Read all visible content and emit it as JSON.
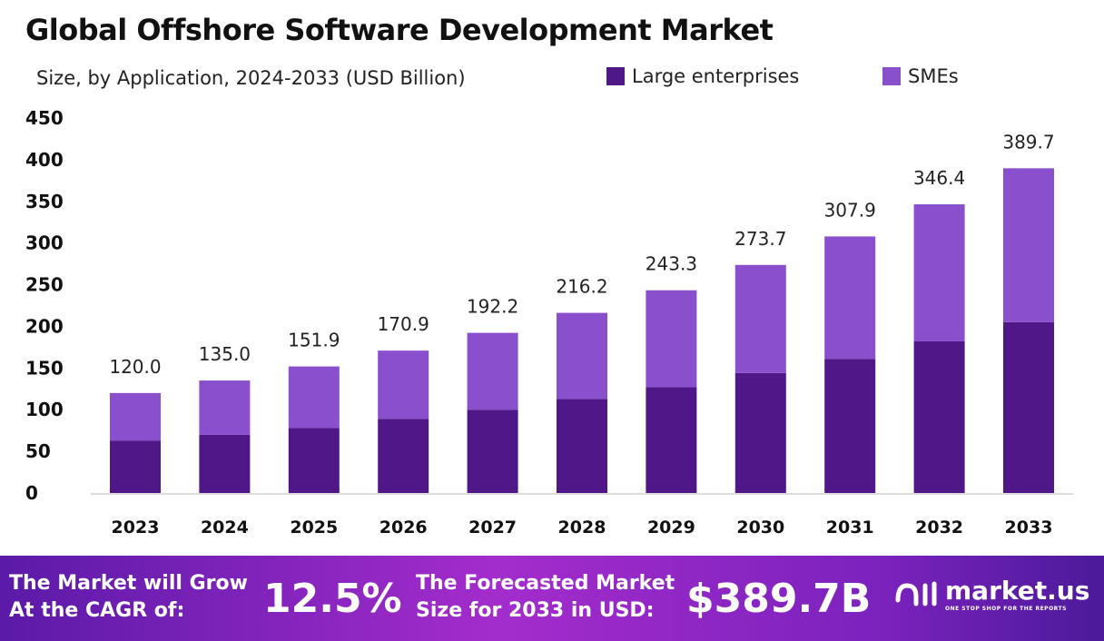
{
  "chart_data": {
    "type": "bar",
    "stacked": true,
    "title": "Global Offshore Software Development Market",
    "subtitle": "Size, by Application, 2024-2033 (USD Billion)",
    "categories": [
      "2023",
      "2024",
      "2025",
      "2026",
      "2027",
      "2028",
      "2029",
      "2030",
      "2031",
      "2032",
      "2033"
    ],
    "series": [
      {
        "name": "Large enterprises",
        "color": "#4f1787",
        "values": [
          63,
          70,
          78,
          89,
          100,
          113,
          127,
          144,
          161,
          182,
          205
        ]
      },
      {
        "name": "SMEs",
        "color": "#8a4fcc",
        "values": [
          57,
          65,
          73.9,
          81.9,
          92.2,
          103.2,
          116.3,
          129.7,
          146.9,
          164.4,
          184.7
        ]
      }
    ],
    "totals": [
      "120.0",
      "135.0",
      "151.9",
      "170.9",
      "192.2",
      "216.2",
      "243.3",
      "273.7",
      "307.9",
      "346.4",
      "389.7"
    ],
    "ylim": [
      0,
      450
    ],
    "yticks": [
      "0",
      "50",
      "100",
      "150",
      "200",
      "250",
      "300",
      "350",
      "400",
      "450"
    ],
    "grid": false,
    "legend": "top-right"
  },
  "footer": {
    "cagr_text_1": "The Market will Grow",
    "cagr_text_2": "At the CAGR of:",
    "cagr_value": "12.5%",
    "forecast_text_1": "The Forecasted Market",
    "forecast_text_2": "Size for 2033 in USD:",
    "forecast_value": "$389.7B",
    "logo_name": "market.us",
    "logo_tagline": "ONE STOP SHOP FOR THE REPORTS"
  }
}
